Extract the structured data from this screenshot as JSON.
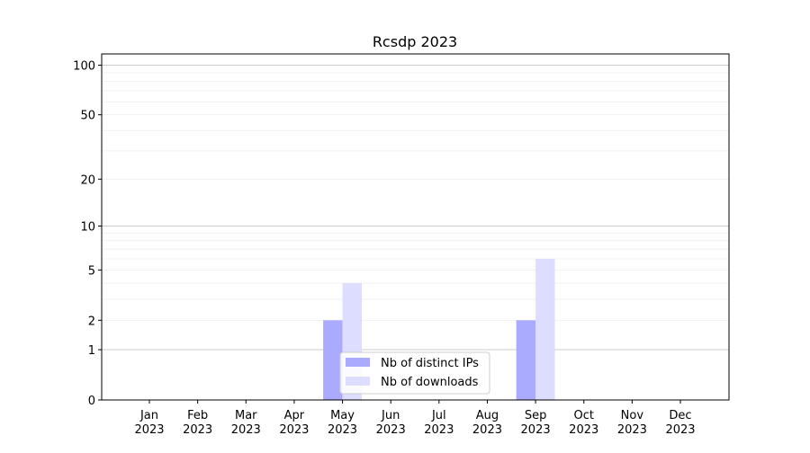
{
  "chart_data": {
    "type": "bar",
    "title": "Rcsdp 2023",
    "xlabel": "",
    "ylabel": "",
    "y_scale": "log(1+y)",
    "ylim": [
      0,
      117
    ],
    "grid": true,
    "legend_position": "lower center",
    "categories": [
      "Jan\n2023",
      "Feb\n2023",
      "Mar\n2023",
      "Apr\n2023",
      "May\n2023",
      "Jun\n2023",
      "Jul\n2023",
      "Aug\n2023",
      "Sep\n2023",
      "Oct\n2023",
      "Nov\n2023",
      "Dec\n2023"
    ],
    "y_ticks": [
      0,
      1,
      2,
      5,
      10,
      20,
      50,
      100
    ],
    "series": [
      {
        "name": "Nb of distinct IPs",
        "color": "#aaaaff",
        "values": [
          0,
          0,
          0,
          0,
          2,
          0,
          0,
          0,
          2,
          0,
          0,
          0
        ]
      },
      {
        "name": "Nb of downloads",
        "color": "#ddddff",
        "values": [
          0,
          0,
          0,
          0,
          4,
          0,
          0,
          0,
          6,
          0,
          0,
          0
        ]
      }
    ]
  }
}
